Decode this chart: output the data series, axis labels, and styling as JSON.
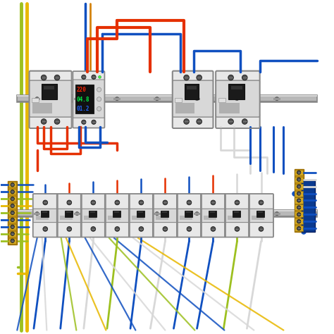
{
  "bg_color": "#ffffff",
  "rail_color": "#b0b0b0",
  "rail_dark": "#808080",
  "rail_light": "#d0d0d0",
  "breaker_body": "#d8d8d8",
  "breaker_body2": "#e8e8e8",
  "breaker_dark": "#b0b0b0",
  "breaker_darker": "#888888",
  "breaker_screw": "#444444",
  "breaker_handle": "#1a1a1a",
  "breaker_label": "#c8c8c8",
  "wire_red": "#e53000",
  "wire_blue": "#1050c0",
  "wire_white": "#d8d8d8",
  "wire_gy": "#9dc020",
  "wire_yellow": "#e8b800",
  "terminal_gold": "#c89010",
  "terminal_dark": "#a07000",
  "display_bg": "#111111",
  "display_red": "#ff2200",
  "display_green": "#00ee44",
  "display_blue": "#2266ff",
  "figsize": [
    4.74,
    4.74
  ],
  "dpi": 100
}
